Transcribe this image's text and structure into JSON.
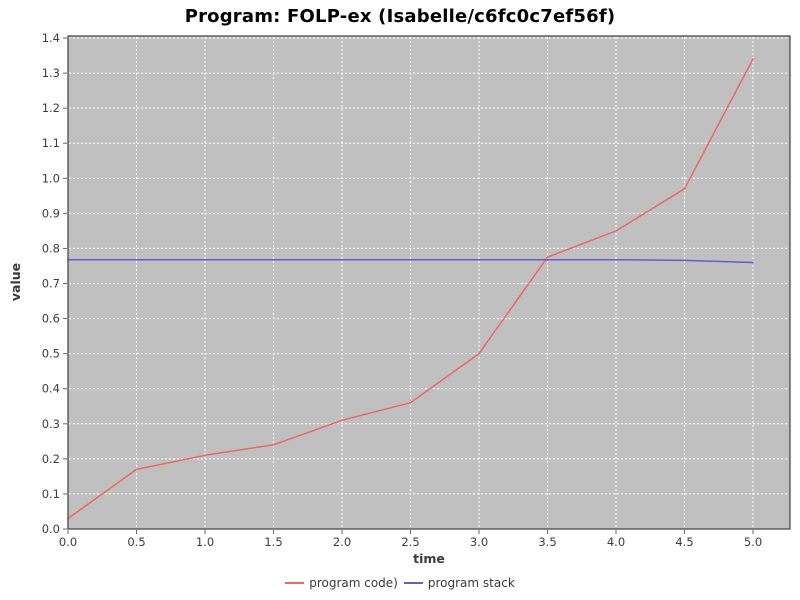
{
  "chart_data": {
    "type": "line",
    "title": "Program: FOLP-ex (Isabelle/c6fc0c7ef56f)",
    "xlabel": "time",
    "ylabel": "value",
    "xlim": [
      0.0,
      5.0
    ],
    "ylim": [
      0.0,
      1.4
    ],
    "x_tick_step": 0.5,
    "y_tick_step": 0.1,
    "grid": true,
    "grid_style": "white-dashed",
    "legend_position": "bottom-center",
    "x": [
      0.0,
      0.5,
      1.0,
      1.5,
      2.0,
      2.5,
      3.0,
      3.5,
      4.0,
      4.5,
      5.0
    ],
    "series": [
      {
        "name": "program code)",
        "color": "#ee6666",
        "values": [
          0.03,
          0.17,
          0.21,
          0.24,
          0.31,
          0.36,
          0.5,
          0.775,
          0.85,
          0.97,
          1.34
        ]
      },
      {
        "name": "program stack",
        "color": "#5e5ed2",
        "values": [
          0.768,
          0.768,
          0.768,
          0.768,
          0.768,
          0.768,
          0.768,
          0.768,
          0.768,
          0.766,
          0.76
        ]
      }
    ],
    "colors": {
      "plot_background": "#c0c0c0",
      "gridline": "#ffffff",
      "plot_border": "#4a4a4a",
      "tick_mark": "#666666",
      "tick_label": "#3d3d3d",
      "axis_label": "#3a3a3a",
      "legend_text": "#3a3a3a",
      "page_background": "#ffffff"
    }
  }
}
